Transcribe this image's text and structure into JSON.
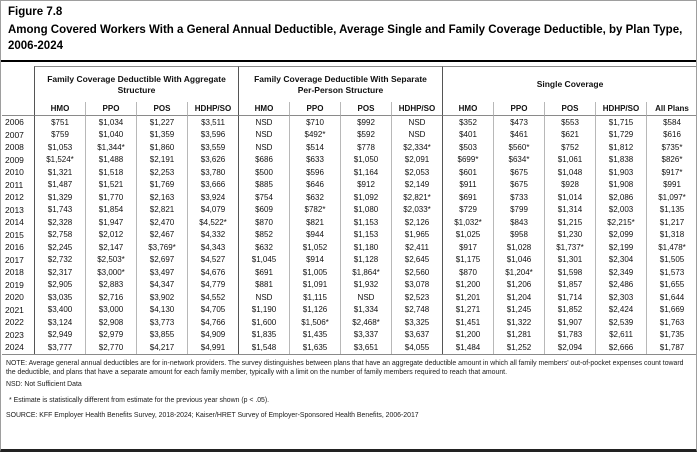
{
  "figure": {
    "label": "Figure 7.8",
    "title": "Among Covered Workers With a General Annual Deductible, Average Single and Family Coverage Deductible, by Plan Type, 2006-2024"
  },
  "chart_data": {
    "type": "table",
    "column_groups": [
      {
        "label": "Family Coverage Deductible With Aggregate Structure",
        "columns": [
          "HMO",
          "PPO",
          "POS",
          "HDHP/SO"
        ]
      },
      {
        "label": "Family Coverage Deductible With Separate Per-Person Structure",
        "columns": [
          "HMO",
          "PPO",
          "POS",
          "HDHP/SO"
        ]
      },
      {
        "label": "Single Coverage",
        "columns": [
          "HMO",
          "PPO",
          "POS",
          "HDHP/SO",
          "All Plans"
        ]
      }
    ],
    "rows": [
      {
        "year": "2006",
        "values": [
          "$751",
          "$1,034",
          "$1,227",
          "$3,511",
          "NSD",
          "$710",
          "$992",
          "NSD",
          "$352",
          "$473",
          "$553",
          "$1,715",
          "$584"
        ]
      },
      {
        "year": "2007",
        "values": [
          "$759",
          "$1,040",
          "$1,359",
          "$3,596",
          "NSD",
          "$492*",
          "$592",
          "NSD",
          "$401",
          "$461",
          "$621",
          "$1,729",
          "$616"
        ]
      },
      {
        "year": "2008",
        "values": [
          "$1,053",
          "$1,344*",
          "$1,860",
          "$3,559",
          "NSD",
          "$514",
          "$778",
          "$2,334*",
          "$503",
          "$560*",
          "$752",
          "$1,812",
          "$735*"
        ]
      },
      {
        "year": "2009",
        "values": [
          "$1,524*",
          "$1,488",
          "$2,191",
          "$3,626",
          "$686",
          "$633",
          "$1,050",
          "$2,091",
          "$699*",
          "$634*",
          "$1,061",
          "$1,838",
          "$826*"
        ]
      },
      {
        "year": "2010",
        "values": [
          "$1,321",
          "$1,518",
          "$2,253",
          "$3,780",
          "$500",
          "$596",
          "$1,164",
          "$2,053",
          "$601",
          "$675",
          "$1,048",
          "$1,903",
          "$917*"
        ]
      },
      {
        "year": "2011",
        "values": [
          "$1,487",
          "$1,521",
          "$1,769",
          "$3,666",
          "$885",
          "$646",
          "$912",
          "$2,149",
          "$911",
          "$675",
          "$928",
          "$1,908",
          "$991"
        ]
      },
      {
        "year": "2012",
        "values": [
          "$1,329",
          "$1,770",
          "$2,163",
          "$3,924",
          "$754",
          "$632",
          "$1,092",
          "$2,821*",
          "$691",
          "$733",
          "$1,014",
          "$2,086",
          "$1,097*"
        ]
      },
      {
        "year": "2013",
        "values": [
          "$1,743",
          "$1,854",
          "$2,821",
          "$4,079",
          "$609",
          "$782*",
          "$1,080",
          "$2,033*",
          "$729",
          "$799",
          "$1,314",
          "$2,003",
          "$1,135"
        ]
      },
      {
        "year": "2014",
        "values": [
          "$2,328",
          "$1,947",
          "$2,470",
          "$4,522*",
          "$870",
          "$821",
          "$1,153",
          "$2,126",
          "$1,032*",
          "$843",
          "$1,215",
          "$2,215*",
          "$1,217"
        ]
      },
      {
        "year": "2015",
        "values": [
          "$2,758",
          "$2,012",
          "$2,467",
          "$4,332",
          "$852",
          "$944",
          "$1,153",
          "$1,965",
          "$1,025",
          "$958",
          "$1,230",
          "$2,099",
          "$1,318"
        ]
      },
      {
        "year": "2016",
        "values": [
          "$2,245",
          "$2,147",
          "$3,769*",
          "$4,343",
          "$632",
          "$1,052",
          "$1,180",
          "$2,411",
          "$917",
          "$1,028",
          "$1,737*",
          "$2,199",
          "$1,478*"
        ]
      },
      {
        "year": "2017",
        "values": [
          "$2,732",
          "$2,503*",
          "$2,697",
          "$4,527",
          "$1,045",
          "$914",
          "$1,128",
          "$2,645",
          "$1,175",
          "$1,046",
          "$1,301",
          "$2,304",
          "$1,505"
        ]
      },
      {
        "year": "2018",
        "values": [
          "$2,317",
          "$3,000*",
          "$3,497",
          "$4,676",
          "$691",
          "$1,005",
          "$1,864*",
          "$2,560",
          "$870",
          "$1,204*",
          "$1,598",
          "$2,349",
          "$1,573"
        ]
      },
      {
        "year": "2019",
        "values": [
          "$2,905",
          "$2,883",
          "$4,347",
          "$4,779",
          "$881",
          "$1,091",
          "$1,932",
          "$3,078",
          "$1,200",
          "$1,206",
          "$1,857",
          "$2,486",
          "$1,655"
        ]
      },
      {
        "year": "2020",
        "values": [
          "$3,035",
          "$2,716",
          "$3,902",
          "$4,552",
          "NSD",
          "$1,115",
          "NSD",
          "$2,523",
          "$1,201",
          "$1,204",
          "$1,714",
          "$2,303",
          "$1,644"
        ]
      },
      {
        "year": "2021",
        "values": [
          "$3,400",
          "$3,000",
          "$4,130",
          "$4,705",
          "$1,190",
          "$1,126",
          "$1,334",
          "$2,748",
          "$1,271",
          "$1,245",
          "$1,852",
          "$2,424",
          "$1,669"
        ]
      },
      {
        "year": "2022",
        "values": [
          "$3,124",
          "$2,908",
          "$3,773",
          "$4,766",
          "$1,600",
          "$1,506*",
          "$2,468*",
          "$3,325",
          "$1,451",
          "$1,322",
          "$1,907",
          "$2,539",
          "$1,763"
        ]
      },
      {
        "year": "2023",
        "values": [
          "$2,949",
          "$2,979",
          "$3,855",
          "$4,909",
          "$1,835",
          "$1,435",
          "$3,337",
          "$3,637",
          "$1,200",
          "$1,281",
          "$1,783",
          "$2,611",
          "$1,735"
        ]
      },
      {
        "year": "2024",
        "values": [
          "$3,777",
          "$2,770",
          "$4,217",
          "$4,991",
          "$1,548",
          "$1,635",
          "$3,651",
          "$4,055",
          "$1,484",
          "$1,252",
          "$2,094",
          "$2,666",
          "$1,787"
        ]
      }
    ]
  },
  "notes": {
    "note": "NOTE: Average general annual deductibles are for in-network providers. The survey distinguishes between plans that have an aggregate deductible amount in which all family members' out-of-pocket expenses count toward the deductible, and plans that have a separate amount for each family member, typically with a limit on the number of family members required to reach that amount.",
    "nsd": "NSD: Not Sufficient Data",
    "asterisk": "* Estimate is statistically different from estimate for the previous year shown (p < .05).",
    "source": "SOURCE: KFF Employer Health Benefits Survey, 2018-2024; Kaiser/HRET Survey of Employer-Sponsored Health Benefits, 2006-2017"
  }
}
